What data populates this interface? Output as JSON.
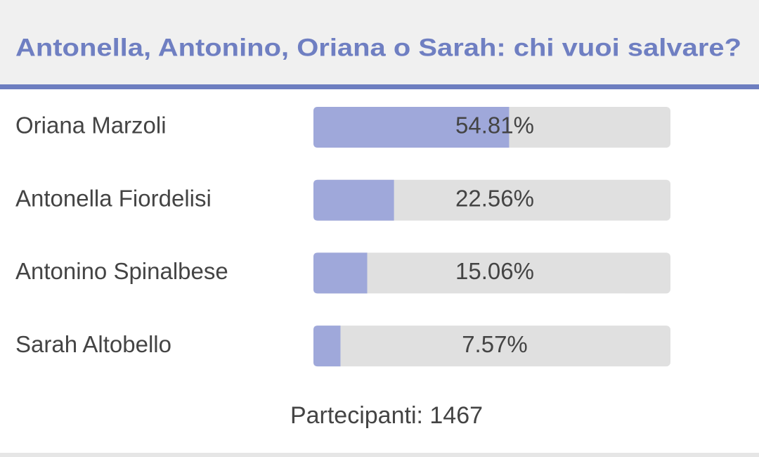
{
  "chart_data": {
    "type": "bar",
    "orientation": "horizontal",
    "title": "Antonella, Antonino, Oriana o Sarah: chi vuoi salvare?",
    "categories": [
      "Oriana Marzoli",
      "Antonella Fiordelisi",
      "Antonino Spinalbese",
      "Sarah Altobello"
    ],
    "values": [
      54.81,
      22.56,
      15.06,
      7.57
    ],
    "value_labels": [
      "54.81%",
      "22.56%",
      "15.06%",
      "7.57%"
    ],
    "color": "#9fa8da",
    "xlim": [
      0,
      100
    ],
    "footer": "Partecipanti: 1467"
  }
}
